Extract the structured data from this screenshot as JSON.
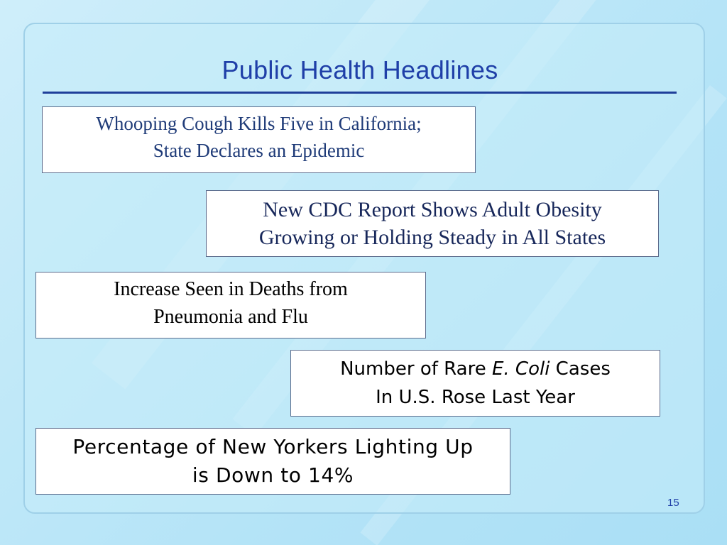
{
  "slide": {
    "title": "Public Health Headlines",
    "page_number": "15",
    "title_color": "#1f3fa8"
  },
  "headlines": [
    {
      "line1": "Whooping Cough Kills Five in California;",
      "line2": "State Declares an Epidemic"
    },
    {
      "line1": "New CDC Report Shows Adult Obesity",
      "line2": "Growing or Holding Steady in All States"
    },
    {
      "line1": "Increase Seen in Deaths from",
      "line2": "Pneumonia and Flu"
    },
    {
      "line1_pre": "Number of Rare ",
      "line1_italic": "E. Coli",
      "line1_post": " Cases",
      "line2": "In U.S. Rose Last Year"
    },
    {
      "line1": "Percentage of New Yorkers Lighting Up",
      "line2": "is Down to 14%"
    }
  ]
}
